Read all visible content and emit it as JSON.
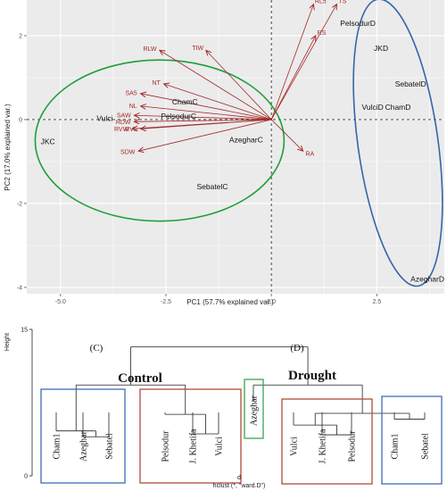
{
  "chart_data": [
    {
      "type": "scatter",
      "subtype": "pca-biplot",
      "xlabel": "PC1 (57.7% explained var.)",
      "ylabel": "PC2 (17.0% explained var.)",
      "xlim": [
        -5.8,
        4.1
      ],
      "ylim": [
        -4.15,
        2.85
      ],
      "x_ticks": [
        -5.0,
        -2.5,
        0.0,
        2.5
      ],
      "x_tick_labels": [
        "-5.0",
        "-2.5",
        "0.0",
        "2.5"
      ],
      "y_ticks": [
        -4,
        -2,
        0,
        2
      ],
      "y_tick_labels": [
        "-4",
        "-2",
        "0",
        "2"
      ],
      "grid": true,
      "colors": {
        "panel": "#ebebeb",
        "grid": "#ffffff",
        "arrow": "#a52a2a",
        "control_ellipse": "#1f9e3a",
        "drought_ellipse": "#3565a8"
      },
      "points": [
        {
          "label": "PelsodurD",
          "x": 2.05,
          "y": 2.3
        },
        {
          "label": "JKD",
          "x": 2.6,
          "y": 1.7
        },
        {
          "label": "SebatelD",
          "x": 3.3,
          "y": 0.85
        },
        {
          "label": "VulciD",
          "x": 2.4,
          "y": 0.3
        },
        {
          "label": "ChamD",
          "x": 3.0,
          "y": 0.3
        },
        {
          "label": "AzegharD",
          "x": 3.7,
          "y": -3.8
        },
        {
          "label": "ChamC",
          "x": -2.05,
          "y": 0.42
        },
        {
          "label": "PelsodurC",
          "x": -2.2,
          "y": 0.08
        },
        {
          "label": "Vulci",
          "x": -3.95,
          "y": 0.03
        },
        {
          "label": "JKC",
          "x": -5.3,
          "y": -0.52
        },
        {
          "label": "AzegharC",
          "x": -0.6,
          "y": -0.48
        },
        {
          "label": "SebatelC",
          "x": -1.4,
          "y": -1.6
        }
      ],
      "loadings": [
        {
          "label": "RL5",
          "x": 1.0,
          "y": 2.75
        },
        {
          "label": "TS",
          "x": 1.55,
          "y": 2.75
        },
        {
          "label": "RS",
          "x": 1.05,
          "y": 2.0
        },
        {
          "label": "TIW",
          "x": -1.55,
          "y": 1.65
        },
        {
          "label": "RLW",
          "x": -2.65,
          "y": 1.65
        },
        {
          "label": "NT",
          "x": -2.55,
          "y": 0.85
        },
        {
          "label": "SA5",
          "x": -3.1,
          "y": 0.62
        },
        {
          "label": "NL",
          "x": -3.1,
          "y": 0.32
        },
        {
          "label": "SAW",
          "x": -3.25,
          "y": 0.1
        },
        {
          "label": "RDW",
          "x": -3.25,
          "y": -0.05
        },
        {
          "label": "RVW",
          "x": -3.3,
          "y": -0.22
        },
        {
          "label": "RV5",
          "x": -3.1,
          "y": -0.22
        },
        {
          "label": "SDW",
          "x": -3.15,
          "y": -0.75
        },
        {
          "label": "RA",
          "x": 0.75,
          "y": -0.75
        }
      ],
      "ellipses": [
        {
          "group": "Control",
          "cx": -2.65,
          "cy": -0.5,
          "rx": 2.95,
          "ry": 1.92,
          "angle": 0
        },
        {
          "group": "Drought",
          "cx": 3.0,
          "cy": -0.55,
          "rx": 0.95,
          "ry": 3.45,
          "angle": -8
        }
      ]
    },
    {
      "type": "dendrogram",
      "ylabel": "Height",
      "y_ticks": [
        0,
        15
      ],
      "ylim": [
        0,
        16
      ],
      "xlabel": "d",
      "subcaption": "hclust (*, \"ward.D\")",
      "merge_heights": {
        "root": 13.2,
        "control": 9.3,
        "drought": 9.3
      },
      "leaves": [
        {
          "label": "Cham1",
          "group": "Control",
          "box": "blue",
          "height": 2.0
        },
        {
          "label": "Azeghar",
          "group": "Control",
          "box": "blue",
          "height": 1.5
        },
        {
          "label": "Sebatel",
          "group": "Control",
          "box": "blue",
          "height": 1.5
        },
        {
          "label": "Pelsodur",
          "group": "Control",
          "box": "red",
          "height": 4.3
        },
        {
          "label": "J. Khetifa",
          "group": "Control",
          "box": "red",
          "height": 2.0
        },
        {
          "label": "Vulci",
          "group": "Control",
          "box": "red",
          "height": 2.0
        },
        {
          "label": "Azeghar",
          "group": "Drought",
          "box": "green",
          "height": 5.5
        },
        {
          "label": "Vulci",
          "group": "Drought",
          "box": "red",
          "height": 3.0
        },
        {
          "label": "J. Khetifa",
          "group": "Drought",
          "box": "red",
          "height": 1.3
        },
        {
          "label": "Pelsodur",
          "group": "Drought",
          "box": "red",
          "height": 1.3
        },
        {
          "label": "Cham1",
          "group": "Drought",
          "box": "blue",
          "height": 3.5
        },
        {
          "label": "Sebatel",
          "group": "Drought",
          "box": "blue",
          "height": 3.5
        }
      ],
      "clusters": [
        {
          "tag": "(C)",
          "title": "Control"
        },
        {
          "tag": "(D)",
          "title": "Drought"
        }
      ],
      "colors": {
        "blue": "#3d6db5",
        "red": "#b14a3a",
        "green": "#3aa34a"
      }
    }
  ]
}
